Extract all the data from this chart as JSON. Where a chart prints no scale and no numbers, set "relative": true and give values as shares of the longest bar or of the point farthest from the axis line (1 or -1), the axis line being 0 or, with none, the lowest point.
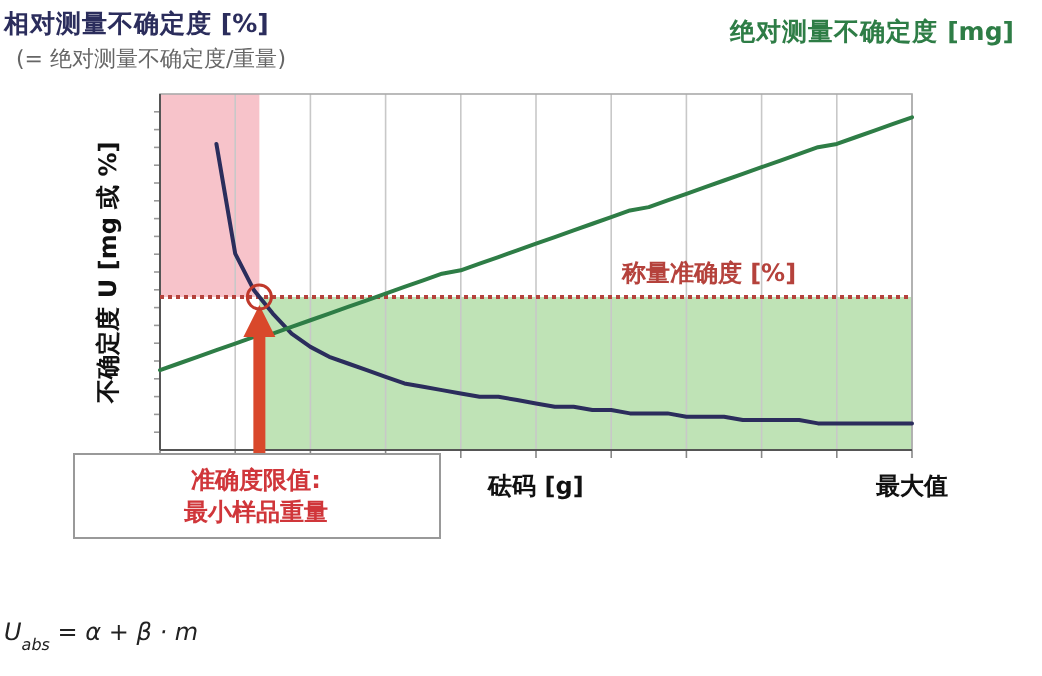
{
  "chart_data": {
    "type": "line",
    "relative": true,
    "xlabel": "砝码 [g]",
    "ylabel": "不确定度 U [mg 或 %]",
    "categories": [
      null,
      null,
      null,
      null,
      null,
      null,
      null,
      null,
      null,
      null,
      null,
      null,
      null,
      null,
      null,
      null,
      null,
      null,
      null,
      null,
      null,
      null,
      null,
      null,
      null,
      null,
      null,
      null,
      null,
      null,
      null,
      null,
      null,
      null,
      null,
      null,
      null,
      null,
      null,
      null,
      null
    ],
    "grid": "x",
    "series": [
      {
        "name": "相对测量不确定度 [%]",
        "color": "#2b2d5c",
        "values": [
          null,
          null,
          null,
          0.92,
          0.59,
          0.48,
          0.41,
          0.35,
          0.31,
          0.28,
          0.26,
          0.24,
          0.22,
          0.2,
          0.19,
          0.18,
          0.17,
          0.16,
          0.16,
          0.15,
          0.14,
          0.13,
          0.13,
          0.12,
          0.12,
          0.11,
          0.11,
          0.11,
          0.1,
          0.1,
          0.1,
          0.09,
          0.09,
          0.09,
          0.09,
          0.08,
          0.08,
          0.08,
          0.08,
          0.08,
          0.08
        ]
      },
      {
        "name": "绝对测量不确定度 [mg]",
        "color": "#2e7d46",
        "values": [
          0.24,
          0.26,
          0.28,
          0.3,
          0.32,
          0.34,
          0.35,
          0.37,
          0.39,
          0.41,
          0.43,
          0.45,
          0.47,
          0.49,
          0.51,
          0.53,
          0.54,
          0.56,
          0.58,
          0.6,
          0.62,
          0.64,
          0.66,
          0.68,
          0.7,
          0.72,
          0.73,
          0.75,
          0.77,
          0.79,
          0.81,
          0.83,
          0.85,
          0.87,
          0.89,
          0.91,
          0.92,
          0.94,
          0.96,
          0.98,
          1.0
        ]
      }
    ],
    "ref_lines": [
      {
        "axis": "y",
        "value": 0.46,
        "label": "称量准确度 [%]",
        "color": "#b5423c",
        "line_style": "dotted"
      }
    ],
    "bands": [
      {
        "axis": "y",
        "from": 0.46,
        "to": 1.07,
        "color": "#f7c3ca"
      },
      {
        "axis": "y",
        "from": 0,
        "to": 0.46,
        "color": "#bfe3b6"
      }
    ],
    "annotations": [
      "(= 绝对测量不确定度/重量)",
      "准确度限值:\n最小样品重量",
      "U$_{abs}$ = α + β · m",
      "最大值"
    ]
  }
}
